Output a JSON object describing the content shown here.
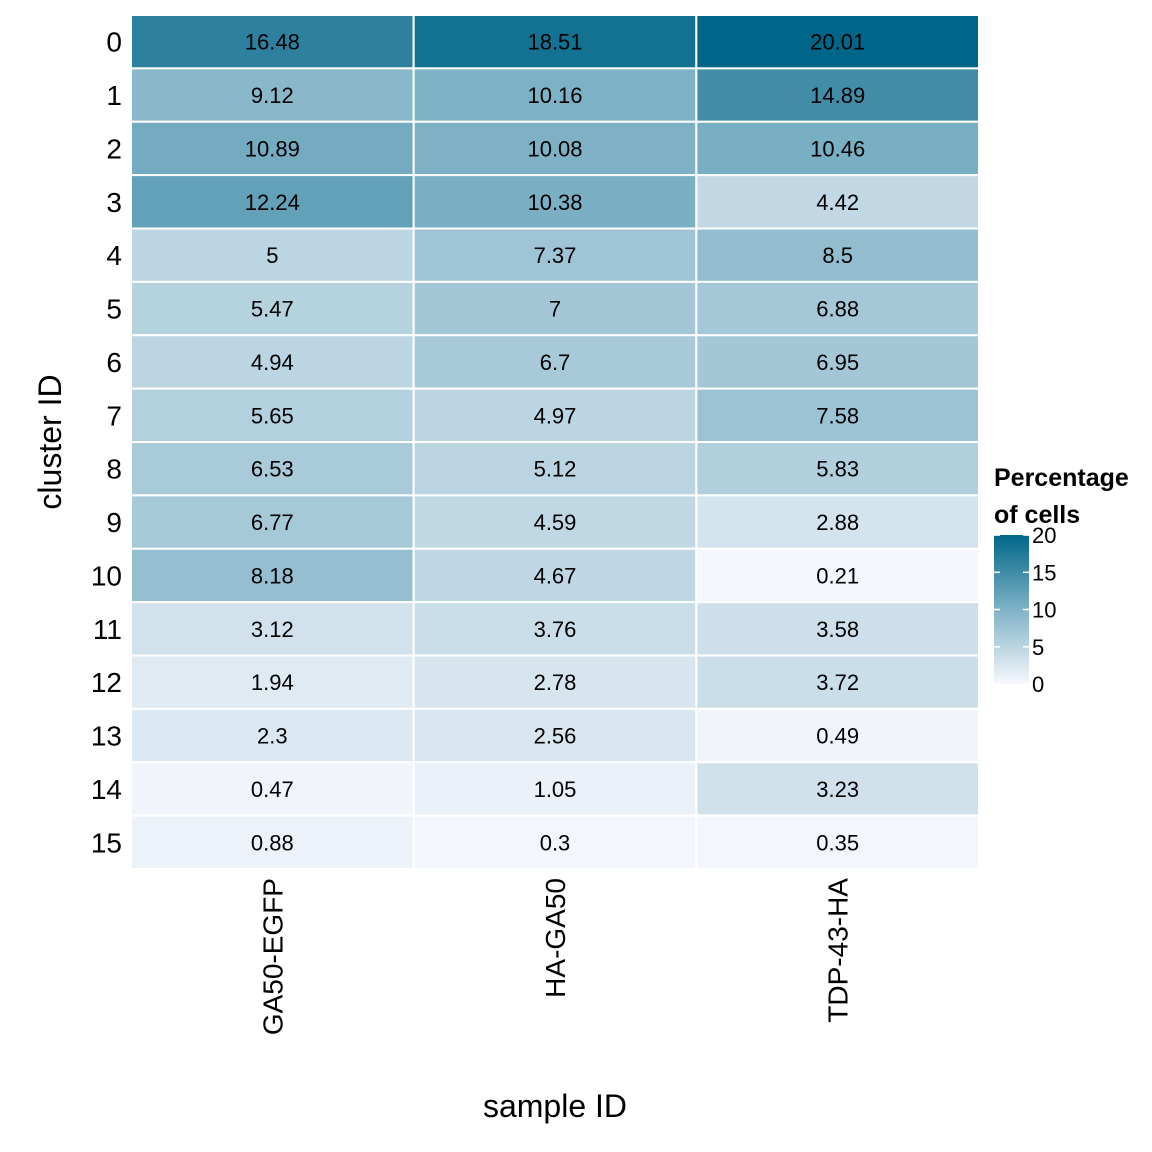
{
  "chart_data": {
    "type": "heatmap",
    "title": "",
    "xlabel": "sample ID",
    "ylabel": "cluster ID",
    "x_categories": [
      "GA50-EGFP",
      "HA-GA50",
      "TDP-43-HA"
    ],
    "y_categories": [
      "0",
      "1",
      "2",
      "3",
      "4",
      "5",
      "6",
      "7",
      "8",
      "9",
      "10",
      "11",
      "12",
      "13",
      "14",
      "15"
    ],
    "values": [
      [
        "16.48",
        "18.51",
        "20.01"
      ],
      [
        "9.12",
        "10.16",
        "14.89"
      ],
      [
        "10.89",
        "10.08",
        "10.46"
      ],
      [
        "12.24",
        "10.38",
        "4.42"
      ],
      [
        "5",
        "7.37",
        "8.5"
      ],
      [
        "5.47",
        "7",
        "6.88"
      ],
      [
        "4.94",
        "6.7",
        "6.95"
      ],
      [
        "5.65",
        "4.97",
        "7.58"
      ],
      [
        "6.53",
        "5.12",
        "5.83"
      ],
      [
        "6.77",
        "4.59",
        "2.88"
      ],
      [
        "8.18",
        "4.67",
        "0.21"
      ],
      [
        "3.12",
        "3.76",
        "3.58"
      ],
      [
        "1.94",
        "2.78",
        "3.72"
      ],
      [
        "2.3",
        "2.56",
        "0.49"
      ],
      [
        "0.47",
        "1.05",
        "3.23"
      ],
      [
        "0.88",
        "0.3",
        "0.35"
      ]
    ],
    "legend": {
      "title_line1": "Percentage",
      "title_line2": "of cells",
      "ticks": [
        "0",
        "5",
        "10",
        "15",
        "20"
      ],
      "tick_values": [
        0,
        5,
        10,
        15,
        20
      ],
      "range": [
        0,
        20.01
      ],
      "placement": "right"
    },
    "colors": {
      "low": "#f7f8fe",
      "mid": "#7fb2c6",
      "high": "#006689",
      "grid": "#ffffff"
    }
  }
}
